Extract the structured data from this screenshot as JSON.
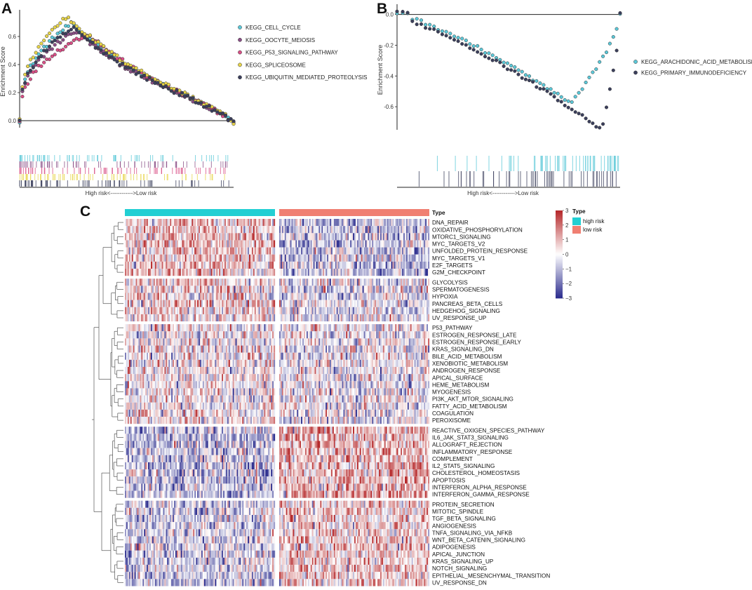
{
  "panels": {
    "a": {
      "letter": "A"
    },
    "b": {
      "letter": "B"
    },
    "c": {
      "letter": "C"
    }
  },
  "chart_data": [
    {
      "id": "A",
      "type": "line",
      "title": "",
      "ylabel": "Enrichment Score",
      "xlabel": "High risk<------------>Low risk",
      "ylim": [
        -0.05,
        0.75
      ],
      "yticks": [
        0.0,
        0.2,
        0.4,
        0.6
      ],
      "ytick_labels": [
        "0.0",
        "0.2",
        "0.4",
        "0.6"
      ],
      "legend_position": "right",
      "series": [
        {
          "name": "KEGG_CELL_CYCLE",
          "color": "#5bc8d8",
          "peak_rank": 0.24,
          "peak_es": 0.69
        },
        {
          "name": "KEGG_OOCYTE_MEIOSIS",
          "color": "#8a4e86",
          "peak_rank": 0.26,
          "peak_es": 0.64
        },
        {
          "name": "KEGG_P53_SIGNALING_PATHWAY",
          "color": "#d94f86",
          "peak_rank": 0.32,
          "peak_es": 0.62
        },
        {
          "name": "KEGG_SPLICEOSOME",
          "color": "#e8d54a",
          "peak_rank": 0.22,
          "peak_es": 0.74
        },
        {
          "name": "KEGG_UBIQUITIN_MEDIATED_PROTEOLYSIS",
          "color": "#3b3f5c",
          "peak_rank": 0.25,
          "peak_es": 0.66
        }
      ]
    },
    {
      "id": "B",
      "type": "line",
      "title": "",
      "ylabel": "Enrichment Score",
      "xlabel": "High risk<------------>Low risk",
      "ylim": [
        -0.75,
        0.03
      ],
      "yticks": [
        0.0,
        -0.2,
        -0.4,
        -0.6
      ],
      "ytick_labels": [
        "0.0",
        "-0.2",
        "-0.4",
        "-0.6"
      ],
      "legend_position": "right",
      "series": [
        {
          "name": "KEGG_ARACHIDONIC_ACID_METABOLISM",
          "color": "#5bc8d8",
          "trough_rank": 0.78,
          "trough_es": -0.58
        },
        {
          "name": "KEGG_PRIMARY_IMMUNODEFICIENCY",
          "color": "#3b3f5c",
          "trough_rank": 0.92,
          "trough_es": -0.73
        }
      ]
    },
    {
      "id": "C",
      "type": "heatmap",
      "legend_title": "Type",
      "annotation_label": "Type",
      "annotation_groups": [
        {
          "label": "high risk",
          "color": "#22cfd3"
        },
        {
          "label": "low risk",
          "color": "#f07f72"
        }
      ],
      "color_scale": {
        "min": -3,
        "max": 3,
        "ticks": [
          3,
          2,
          1,
          0,
          -1,
          -2,
          -3
        ],
        "tick_labels": [
          "3",
          "2",
          "1",
          "0",
          "−1",
          "−2",
          "−3"
        ],
        "low_color": "#2e2f8f",
        "mid_color": "#ffffff",
        "high_color": "#b62a2c"
      },
      "row_groups": [
        [
          "DNA_REPAIR",
          "OXIDATIVE_PHOSPHORYLATION",
          "MTORC1_SIGNALING",
          "MYC_TARGETS_V2",
          "UNFOLDED_PROTEIN_RESPONSE",
          "MYC_TARGETS_V1",
          "E2F_TARGETS",
          "G2M_CHECKPOINT"
        ],
        [
          "GLYCOLYSIS",
          "SPERMATOGENESIS",
          "HYPOXIA",
          "PANCREAS_BETA_CELLS",
          "HEDGEHOG_SIGNALING",
          "UV_RESPONSE_UP"
        ],
        [
          "P53_PATHWAY",
          "ESTROGEN_RESPONSE_LATE",
          "ESTROGEN_RESPONSE_EARLY",
          "KRAS_SIGNALING_DN",
          "BILE_ACID_METABOLISM",
          "XENOBIOTIC_METABOLISM",
          "ANDROGEN_RESPONSE",
          "APICAL_SURFACE",
          "HEME_METABOLISM",
          "MYOGENESIS",
          "PI3K_AKT_MTOR_SIGNALING",
          "FATTY_ACID_METABOLISM",
          "COAGULATION",
          "PEROXISOME"
        ],
        [
          "REACTIVE_OXIGEN_SPECIES_PATHWAY",
          "IL6_JAK_STAT3_SIGNALING",
          "ALLOGRAFT_REJECTION",
          "INFLAMMATORY_RESPONSE",
          "COMPLEMENT",
          "IL2_STAT5_SIGNALING",
          "CHOLESTEROL_HOMEOSTASIS",
          "APOPTOSIS",
          "INTERFERON_ALPHA_RESPONSE",
          "INTERFERON_GAMMA_RESPONSE"
        ],
        [
          "PROTEIN_SECRETION",
          "MITOTIC_SPINDLE",
          "TGF_BETA_SIGNALING",
          "ANGIOGENESIS",
          "TNFA_SIGNALING_VIA_NFKB",
          "WNT_BETA_CATENIN_SIGNALING",
          "ADIPOGENESIS",
          "APICAL_JUNCTION",
          "KRAS_SIGNALING_UP",
          "NOTCH_SIGNALING",
          "EPITHELIAL_MESENCHYMAL_TRANSITION",
          "UV_RESPONSE_DN"
        ]
      ],
      "row_group_bias": [
        [
          0.25,
          -0.25
        ],
        [
          0.15,
          -0.1
        ],
        [
          0.05,
          -0.05
        ],
        [
          -0.25,
          0.3
        ],
        [
          -0.2,
          0.2
        ]
      ]
    }
  ]
}
